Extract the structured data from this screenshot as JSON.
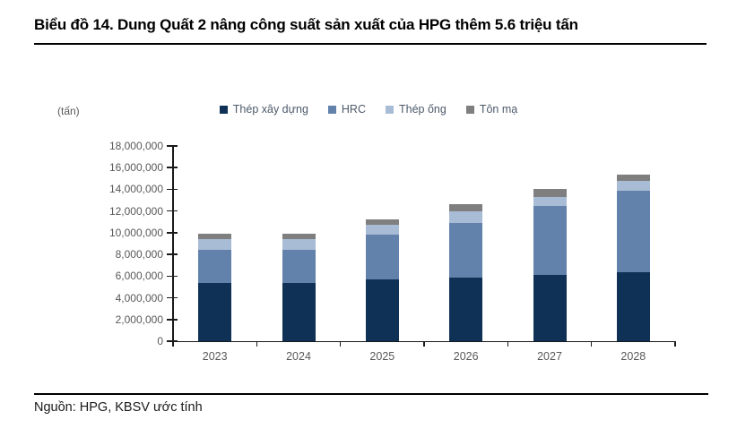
{
  "header": {
    "title": "Biểu đồ 14. Dung Quất 2 nâng công suất sản xuất của HPG thêm 5.6 triệu tấn"
  },
  "footer": {
    "source": "Nguồn: HPG, KBSV ước tính"
  },
  "chart_data": {
    "type": "bar",
    "stacked": true,
    "title": "",
    "unit_label": "(tấn)",
    "xlabel": "",
    "ylabel": "",
    "categories": [
      "2023",
      "2024",
      "2025",
      "2026",
      "2027",
      "2028"
    ],
    "series": [
      {
        "id": "thep-xay-dung",
        "name": "Thép xây dựng",
        "color": "#0F3156",
        "values": [
          5400000,
          5400000,
          5700000,
          5900000,
          6100000,
          6400000
        ]
      },
      {
        "id": "hrc",
        "name": "HRC",
        "color": "#6282AC",
        "values": [
          3000000,
          3000000,
          4100000,
          5000000,
          6400000,
          7500000
        ]
      },
      {
        "id": "thep-ong",
        "name": "Thép ống",
        "color": "#A9BCD6",
        "values": [
          1000000,
          1000000,
          900000,
          1100000,
          800000,
          900000
        ]
      },
      {
        "id": "ton-ma",
        "name": "Tôn mạ",
        "color": "#7F7F7F",
        "values": [
          500000,
          500000,
          500000,
          600000,
          700000,
          600000
        ]
      }
    ],
    "totals": [
      9900000,
      9900000,
      11200000,
      12600000,
      14000000,
      15400000
    ],
    "ylim": [
      0,
      18000000
    ],
    "ytick_step": 2000000,
    "grid": false,
    "legend_position": "top"
  }
}
